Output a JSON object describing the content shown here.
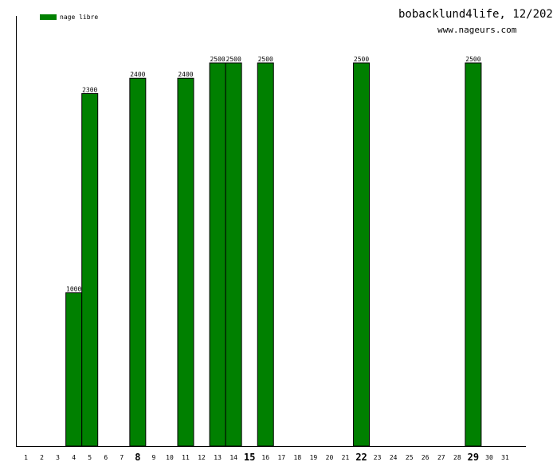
{
  "chart_data": {
    "type": "bar",
    "title": "bobacklund4life, 12/202",
    "subtitle": "www.nageurs.com",
    "legend": [
      {
        "name": "nage libre",
        "color": "#008000"
      }
    ],
    "legend_placement": "top-left",
    "categories": [
      "1",
      "2",
      "3",
      "4",
      "5",
      "6",
      "7",
      "8",
      "9",
      "10",
      "11",
      "12",
      "13",
      "14",
      "15",
      "16",
      "17",
      "18",
      "19",
      "20",
      "21",
      "22",
      "23",
      "24",
      "25",
      "26",
      "27",
      "28",
      "29",
      "30",
      "31"
    ],
    "bold_categories": [
      "8",
      "15",
      "22",
      "29"
    ],
    "series": [
      {
        "name": "nage libre",
        "color": "#008000",
        "values": [
          0,
          0,
          0,
          1000,
          2300,
          0,
          0,
          2400,
          0,
          0,
          2400,
          0,
          2500,
          2500,
          0,
          2500,
          0,
          0,
          0,
          0,
          0,
          2500,
          0,
          0,
          0,
          0,
          0,
          0,
          2500,
          0,
          0
        ]
      }
    ],
    "ylim": [
      0,
      2500
    ],
    "grid": false
  }
}
